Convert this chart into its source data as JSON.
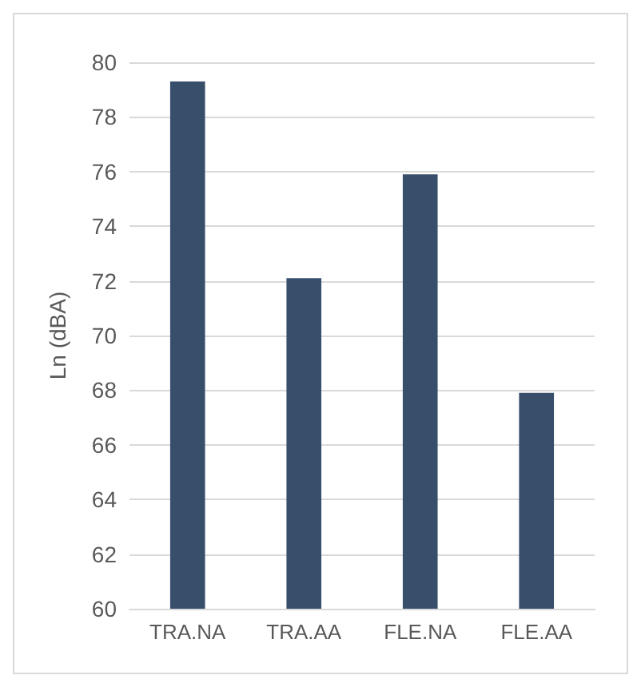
{
  "chart_data": {
    "type": "bar",
    "ylabel": "Ln (dBA)",
    "categories": [
      "TRA.NA",
      "TRA.AA",
      "FLE.NA",
      "FLE.AA"
    ],
    "values": [
      79.3,
      72.1,
      75.9,
      67.9
    ],
    "color": "#374f6b",
    "ylim": [
      60,
      80
    ],
    "yticks": [
      60,
      62,
      64,
      66,
      68,
      70,
      72,
      74,
      76,
      78,
      80
    ],
    "grid": "y"
  }
}
